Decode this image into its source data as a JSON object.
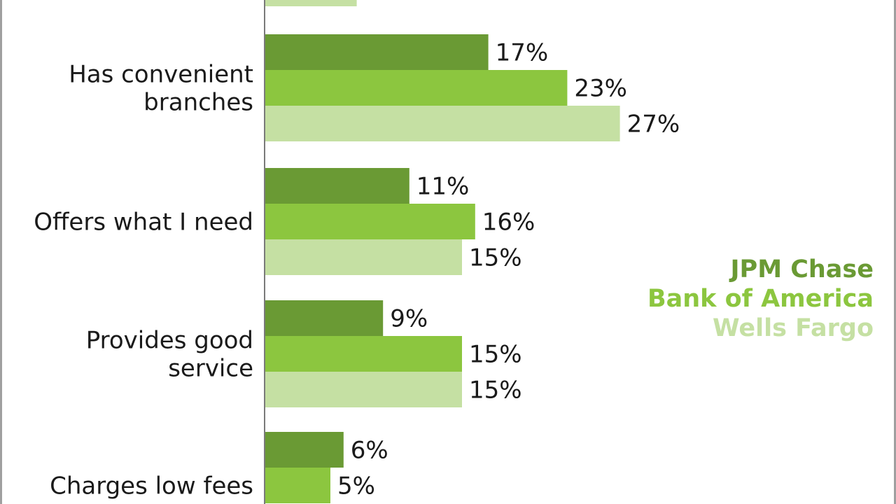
{
  "chart_data": {
    "type": "bar",
    "orientation": "horizontal",
    "categories": [
      "",
      "Has convenient branches",
      "Offers what I need",
      "Provides good service",
      "Charges low fees"
    ],
    "category_lines": [
      [
        ""
      ],
      [
        "Has convenient",
        "branches"
      ],
      [
        "Offers what I need"
      ],
      [
        "Provides good",
        "service"
      ],
      [
        "Charges low fees"
      ]
    ],
    "series": [
      {
        "name": "JPM Chase",
        "color": "#6a9a34",
        "values": [
          null,
          17,
          11,
          9,
          6
        ]
      },
      {
        "name": "Bank of America",
        "color": "#8cc63f",
        "values": [
          null,
          23,
          16,
          15,
          5
        ]
      },
      {
        "name": "Wells Fargo",
        "color": "#c5e0a3",
        "values": [
          7,
          27,
          15,
          15,
          null
        ]
      }
    ],
    "value_suffix": "%",
    "legend_position": "right",
    "grid": false
  }
}
